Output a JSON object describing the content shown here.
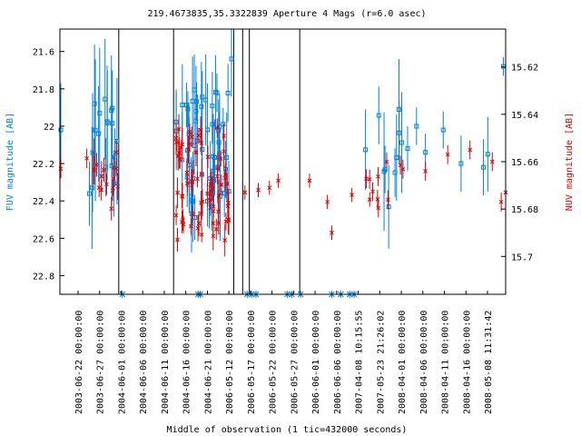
{
  "chart_data": {
    "type": "scatter",
    "title": "219.4673835,35.3322839    Aperture 4 Mags (r=6.0 asec)",
    "xlabel": "Middle of observation (1 tic=432000 seconds)",
    "ylabel_left": "FUV magnitude [AB]",
    "ylabel_right": "NUV magnitude [AB]",
    "fuv_ylim": [
      22.9,
      21.48
    ],
    "nuv_ylim": [
      15.716,
      15.604
    ],
    "left_ticks": [
      "21.6",
      "21.8",
      "22",
      "22.2",
      "22.4",
      "22.6",
      "22.8"
    ],
    "right_ticks": [
      "15.62",
      "15.64",
      "15.66",
      "15.68",
      "15.7"
    ],
    "x_tick_labels": [
      "2003-06-22 00:00:00",
      "2003-06-27 00:00:00",
      "2004-06-01 00:00:00",
      "2004-06-06 00:00:00",
      "2004-06-11 00:00:00",
      "2004-06-16 00:00:00",
      "2004-06-21 00:00:00",
      "2006-05-12 00:00:00",
      "2006-05-17 00:00:00",
      "2006-05-22 00:00:00",
      "2006-05-27 00:00:00",
      "2006-06-01 00:00:00",
      "2006-06-06 00:00:00",
      "2007-04-08 10:15:55",
      "2007-05-23 21:26:02",
      "2008-04-01 00:00:00",
      "2008-04-06 00:00:00",
      "2008-04-11 00:00:00",
      "2008-04-16 00:00:00",
      "2008-05-08 11:31:42"
    ],
    "series": [
      {
        "name": "FUV",
        "color": "#0080e0",
        "marker": "square"
      },
      {
        "name": "NUV",
        "color": "#e00000",
        "marker": "x"
      }
    ],
    "segment_breaks": [
      0.132,
      0.255,
      0.39,
      0.41,
      0.425,
      0.538
    ]
  }
}
